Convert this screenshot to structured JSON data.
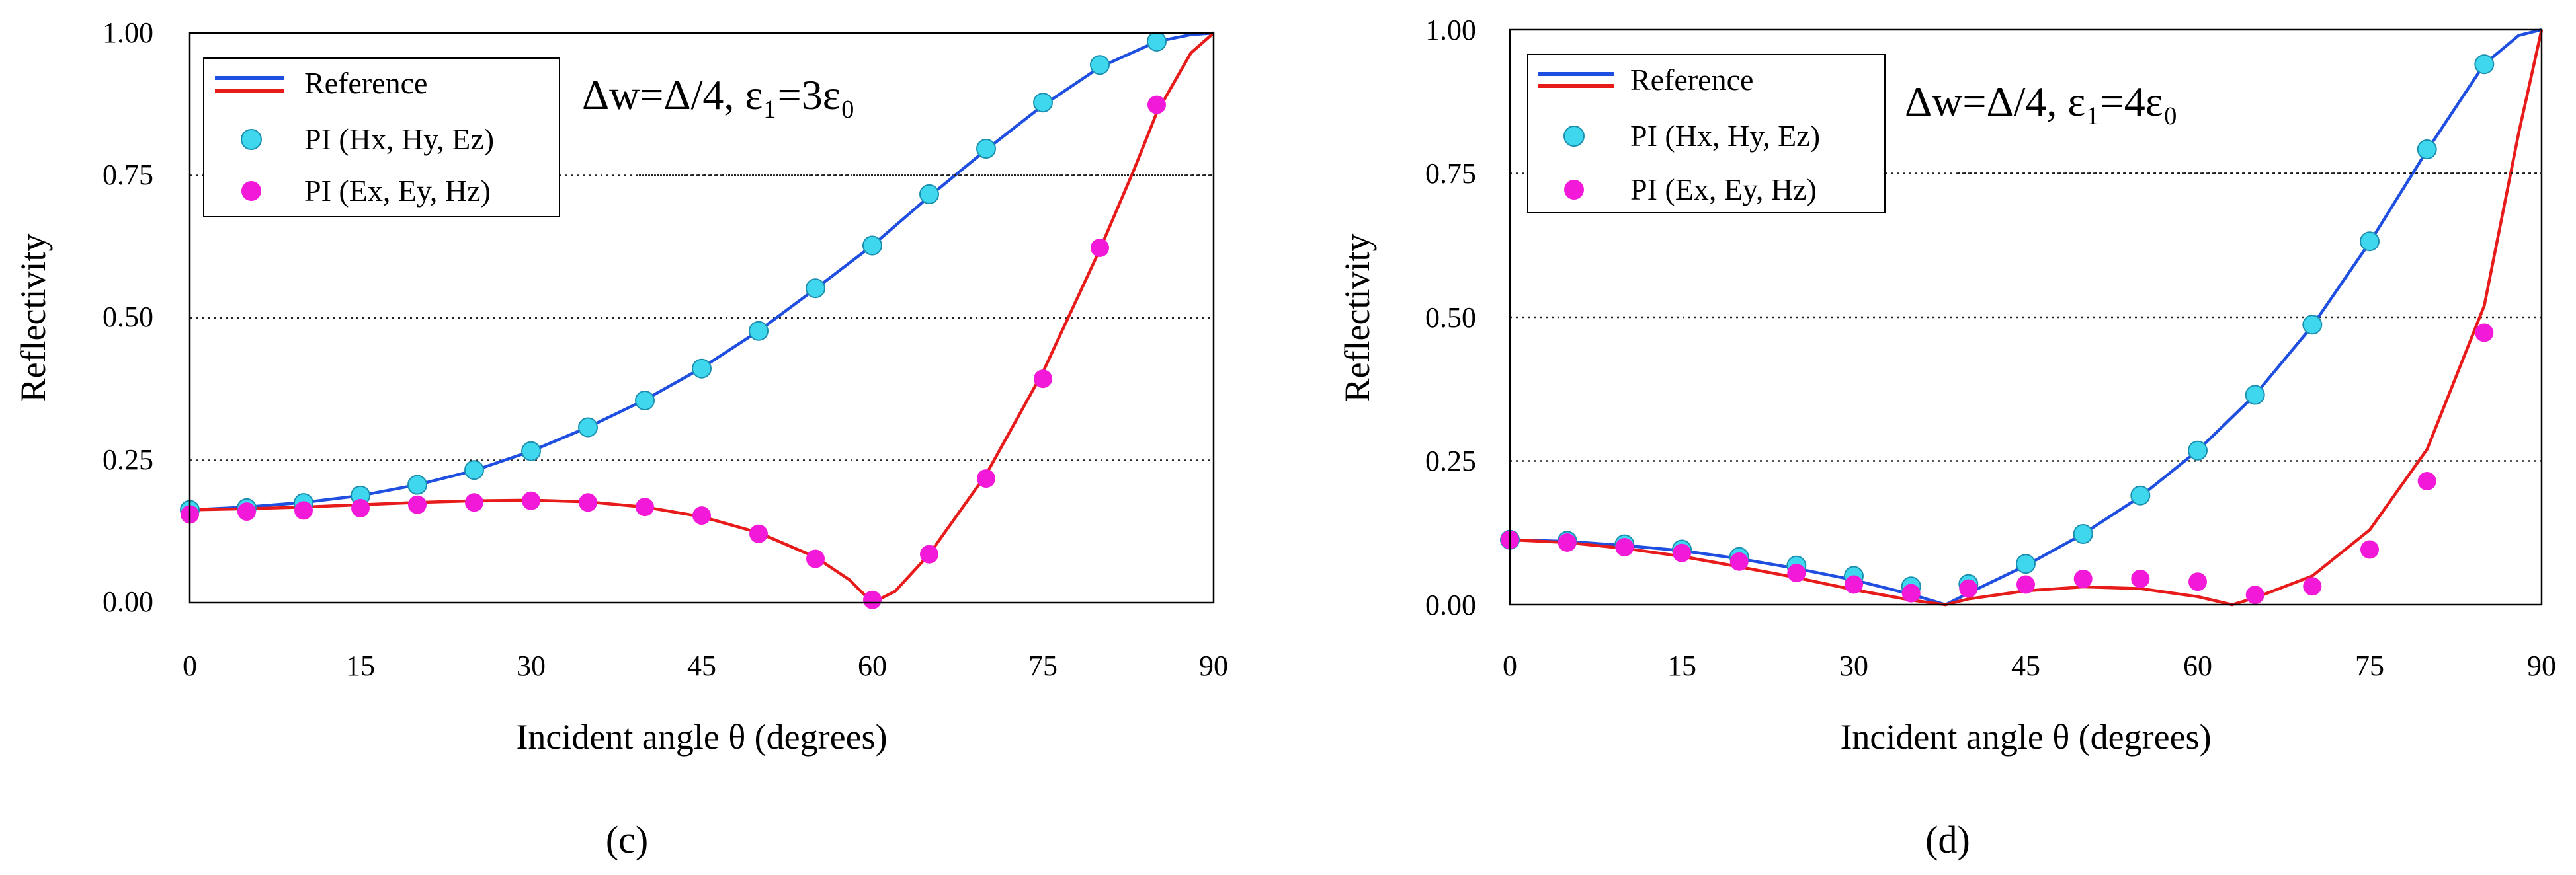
{
  "chart_data": [
    {
      "type": "line",
      "panel_label": "(c)",
      "parameter_text": "Δw=Δ/4, ε₁=3ε₀",
      "xlabel": "Incident angle θ (degrees)",
      "ylabel": "Reflectivity",
      "xlim": [
        0,
        90
      ],
      "ylim": [
        0,
        1
      ],
      "xticks": [
        "0",
        "15",
        "30",
        "45",
        "60",
        "75",
        "90"
      ],
      "yticks": [
        "0.00",
        "0.25",
        "0.50",
        "0.75",
        "1.00"
      ],
      "grid": "horizontal dotted at 0.25, 0.50, 0.75",
      "legend_position": "top-left",
      "legend": [
        "Reference",
        "PI (Hx, Hy, Ez)",
        "PI (Ex, Ey, Hz)"
      ],
      "series": [
        {
          "name": "Reference (Hx,Hy,Ez)",
          "kind": "line",
          "color": "#1f4fe0",
          "x": [
            0,
            5,
            10,
            15,
            20,
            25,
            30,
            35,
            40,
            45,
            50,
            55,
            60,
            65,
            70,
            75,
            80,
            85,
            88,
            90
          ],
          "y": [
            0.163,
            0.168,
            0.176,
            0.188,
            0.207,
            0.232,
            0.266,
            0.308,
            0.356,
            0.412,
            0.477,
            0.551,
            0.627,
            0.713,
            0.795,
            0.873,
            0.94,
            0.985,
            0.997,
            1.0
          ]
        },
        {
          "name": "Reference (Ex,Ey,Hz)",
          "kind": "line",
          "color": "#e81b1b",
          "x": [
            0,
            5,
            10,
            15,
            20,
            25,
            30,
            35,
            40,
            45,
            50,
            55,
            58,
            60,
            62,
            65,
            70,
            75,
            80,
            83,
            85,
            88,
            90
          ],
          "y": [
            0.163,
            0.165,
            0.168,
            0.172,
            0.176,
            0.179,
            0.18,
            0.177,
            0.168,
            0.151,
            0.123,
            0.08,
            0.04,
            0.0,
            0.02,
            0.085,
            0.225,
            0.405,
            0.62,
            0.76,
            0.86,
            0.965,
            1.0
          ]
        },
        {
          "name": "PI (Hx,Hy,Ez)",
          "kind": "scatter",
          "color": "#3fd7ee",
          "x": [
            0,
            5,
            10,
            15,
            20,
            25,
            30,
            35,
            40,
            45,
            50,
            55,
            60,
            65,
            70,
            75,
            80,
            85
          ],
          "y": [
            0.163,
            0.166,
            0.175,
            0.188,
            0.207,
            0.233,
            0.266,
            0.308,
            0.355,
            0.411,
            0.477,
            0.552,
            0.627,
            0.717,
            0.797,
            0.878,
            0.944,
            0.985
          ]
        },
        {
          "name": "PI (Ex,Ey,Hz)",
          "kind": "scatter",
          "color": "#f21ad8",
          "x": [
            0,
            5,
            10,
            15,
            20,
            25,
            30,
            35,
            40,
            45,
            50,
            55,
            60,
            65,
            70,
            75,
            80,
            85
          ],
          "y": [
            0.155,
            0.16,
            0.162,
            0.166,
            0.172,
            0.176,
            0.179,
            0.176,
            0.168,
            0.153,
            0.121,
            0.077,
            0.005,
            0.085,
            0.218,
            0.393,
            0.623,
            0.874
          ]
        }
      ]
    },
    {
      "type": "line",
      "panel_label": "(d)",
      "parameter_text": "Δw=Δ/4, ε₁=4ε₀",
      "xlabel": "Incident angle θ (degrees)",
      "ylabel": "Reflectivity",
      "xlim": [
        0,
        90
      ],
      "ylim": [
        0,
        1
      ],
      "xticks": [
        "0",
        "15",
        "30",
        "45",
        "60",
        "75",
        "90"
      ],
      "yticks": [
        "0.00",
        "0.25",
        "0.50",
        "0.75",
        "1.00"
      ],
      "grid": "horizontal dotted at 0.25, 0.50, 0.75",
      "legend_position": "top-left",
      "legend": [
        "Reference",
        "PI (Hx, Hy, Ez)",
        "PI (Ex, Ey, Hz)"
      ],
      "series": [
        {
          "name": "Reference (Hx,Hy,Ez)",
          "kind": "line",
          "color": "#1f4fe0",
          "x": [
            0,
            5,
            10,
            15,
            20,
            25,
            30,
            35,
            38,
            40,
            45,
            50,
            55,
            60,
            65,
            70,
            75,
            80,
            85,
            88,
            90
          ],
          "y": [
            0.113,
            0.11,
            0.103,
            0.094,
            0.08,
            0.063,
            0.043,
            0.018,
            0.0,
            0.02,
            0.068,
            0.123,
            0.188,
            0.268,
            0.365,
            0.485,
            0.63,
            0.79,
            0.94,
            0.99,
            1.0
          ]
        },
        {
          "name": "Reference (Ex,Ey,Hz)",
          "kind": "line",
          "color": "#e81b1b",
          "x": [
            0,
            5,
            10,
            15,
            20,
            25,
            30,
            35,
            38,
            40,
            45,
            50,
            55,
            60,
            63,
            65,
            70,
            75,
            80,
            85,
            88,
            90
          ],
          "y": [
            0.113,
            0.108,
            0.098,
            0.084,
            0.066,
            0.047,
            0.026,
            0.008,
            0.0,
            0.01,
            0.024,
            0.031,
            0.028,
            0.014,
            0.0,
            0.012,
            0.05,
            0.13,
            0.27,
            0.52,
            0.82,
            1.0
          ]
        },
        {
          "name": "PI (Hx,Hy,Ez)",
          "kind": "scatter",
          "color": "#3fd7ee",
          "x": [
            0,
            5,
            10,
            15,
            20,
            25,
            30,
            35,
            40,
            45,
            50,
            55,
            60,
            65,
            70,
            75,
            80,
            85
          ],
          "y": [
            0.113,
            0.111,
            0.105,
            0.096,
            0.083,
            0.068,
            0.05,
            0.032,
            0.036,
            0.071,
            0.123,
            0.19,
            0.268,
            0.365,
            0.487,
            0.632,
            0.792,
            0.94
          ]
        },
        {
          "name": "PI (Ex,Ey,Hz)",
          "kind": "scatter",
          "color": "#f21ad8",
          "x": [
            0,
            5,
            10,
            15,
            20,
            25,
            30,
            35,
            40,
            45,
            50,
            55,
            60,
            65,
            70,
            75,
            80,
            85
          ],
          "y": [
            0.113,
            0.108,
            0.1,
            0.09,
            0.075,
            0.055,
            0.035,
            0.02,
            0.028,
            0.035,
            0.045,
            0.045,
            0.04,
            0.017,
            0.032,
            0.096,
            0.215,
            0.473
          ]
        }
      ]
    }
  ]
}
